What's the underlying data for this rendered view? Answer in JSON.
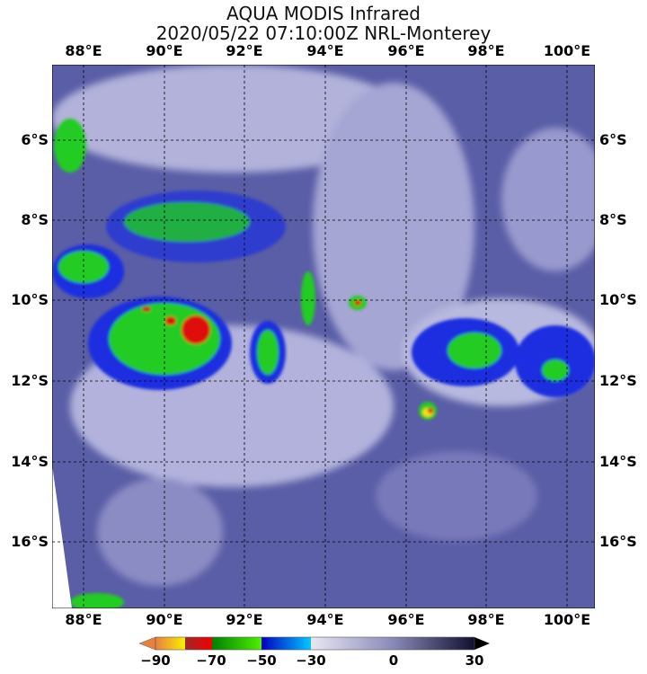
{
  "title": {
    "line1": "AQUA MODIS Infrared",
    "line2": "2020/05/22 07:10:00Z NRL-Monterey"
  },
  "map": {
    "lon_labels": [
      "88°E",
      "90°E",
      "92°E",
      "94°E",
      "96°E",
      "98°E",
      "100°E"
    ],
    "lat_labels": [
      "6°S",
      "8°S",
      "10°S",
      "12°S",
      "14°S",
      "16°S"
    ],
    "colors": {
      "background_cloud_free": "#5a5ea6",
      "cirrus": "#d8d8ee",
      "cold_green": "#22cc22",
      "cold_blue": "#1a2ee0",
      "coldest_red": "#e01010",
      "yellow": "#f5e020"
    }
  },
  "colorbar": {
    "ticks": [
      "−90",
      "−70",
      "−50",
      "−30",
      "0",
      "30"
    ],
    "extend": "both"
  }
}
